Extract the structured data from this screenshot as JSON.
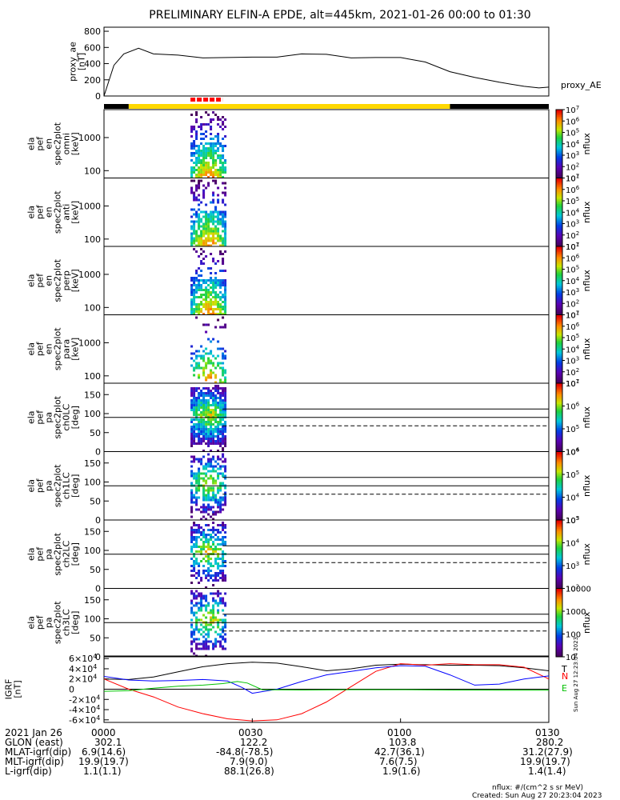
{
  "title": "PRELIMINARY ELFIN-A EPDE, alt=445km, 2021-01-26 00:00 to 01:30",
  "side_label": "Sun Aug 27 12:23:04 2023",
  "footer": {
    "rows": [
      {
        "label": "2021 Jan 26",
        "values": [
          "0000",
          "0030",
          "0100",
          "0130"
        ]
      },
      {
        "label": "GLON (east)",
        "values": [
          "302.1",
          "122.2",
          "103.8",
          "280.2"
        ]
      },
      {
        "label": "MLAT-igrf(dip)",
        "values": [
          "6.9(14.6)",
          "-84.8(-78.5)",
          "42.7(36.1)",
          "31.2(27.9)"
        ]
      },
      {
        "label": "MLT-igrf(dip)",
        "values": [
          "19.9(19.7)",
          "7.9(9.0)",
          "7.6(7.5)",
          "19.9(19.7)"
        ]
      },
      {
        "label": "L-igrf(dip)",
        "values": [
          "1.1(1.1)",
          "88.1(26.8)",
          "1.9(1.6)",
          "1.4(1.4)"
        ]
      }
    ],
    "units_note": "nflux: #/(cm^2 s sr MeV)",
    "created": "Created: Sun Aug 27 20:23:04 2023"
  },
  "chart_data": [
    {
      "type": "line",
      "panel": "proxy_ae",
      "ylabel": [
        "proxy_ae",
        "[nT]"
      ],
      "series_label": "proxy_AE",
      "yticks": [
        0,
        200,
        400,
        600,
        800
      ],
      "ylim": [
        0,
        850
      ],
      "x_minutes": [
        0,
        2,
        4,
        7,
        10,
        15,
        20,
        25,
        30,
        35,
        40,
        45,
        50,
        55,
        60,
        65,
        70,
        75,
        80,
        85,
        88,
        90
      ],
      "values": [
        0,
        380,
        520,
        590,
        520,
        505,
        470,
        475,
        480,
        480,
        520,
        515,
        470,
        475,
        475,
        420,
        300,
        230,
        170,
        120,
        100,
        110
      ],
      "color": "#000000"
    },
    {
      "type": "bar",
      "panel": "science_zone_bar",
      "segments": [
        {
          "start_min": 0,
          "end_min": 5,
          "color": "#000000"
        },
        {
          "start_min": 5,
          "end_min": 70,
          "color": "#ffd800"
        },
        {
          "start_min": 70,
          "end_min": 90,
          "color": "#000000"
        }
      ],
      "markers": [
        {
          "start_min": 17.5,
          "end_min": 24,
          "color": "#ff0000"
        }
      ]
    },
    {
      "type": "heatmap",
      "panel": "ela_pef_en_spec2plot_omni",
      "ylabel": [
        "ela",
        "pef",
        "en",
        "spec2plot",
        "omni",
        "[keV]"
      ],
      "yscale": "log",
      "ylim": [
        60,
        7000
      ],
      "yticks": [
        100,
        1000
      ],
      "xlim_min": [
        17.5,
        24.5
      ],
      "zlabel": "nflux",
      "zscale": "log",
      "zlim": [
        10,
        10000000
      ],
      "zticks": [
        "10^1",
        "10^2",
        "10^3",
        "10^4",
        "10^5",
        "10^6",
        "10^7"
      ]
    },
    {
      "type": "heatmap",
      "panel": "ela_pef_en_spec2plot_anti",
      "ylabel": [
        "ela",
        "pef",
        "en",
        "spec2plot",
        "anti",
        "[keV]"
      ],
      "yscale": "log",
      "ylim": [
        60,
        7000
      ],
      "yticks": [
        100,
        1000
      ],
      "zlabel": "nflux",
      "zscale": "log",
      "zlim": [
        10,
        10000000
      ],
      "zticks": [
        "10^1",
        "10^2",
        "10^3",
        "10^4",
        "10^5",
        "10^6",
        "10^7"
      ]
    },
    {
      "type": "heatmap",
      "panel": "ela_pef_en_spec2plot_perp",
      "ylabel": [
        "ela",
        "pef",
        "en",
        "spec2plot",
        "perp",
        "[keV]"
      ],
      "yscale": "log",
      "ylim": [
        60,
        7000
      ],
      "yticks": [
        100,
        1000
      ],
      "zlabel": "nflux",
      "zscale": "log",
      "zlim": [
        10,
        10000000
      ],
      "zticks": [
        "10^1",
        "10^2",
        "10^3",
        "10^4",
        "10^5",
        "10^6",
        "10^7"
      ]
    },
    {
      "type": "heatmap",
      "panel": "ela_pef_en_spec2plot_para",
      "ylabel": [
        "ela",
        "pef",
        "en",
        "spec2plot",
        "para",
        "[keV]"
      ],
      "yscale": "log",
      "ylim": [
        60,
        7000
      ],
      "yticks": [
        100,
        1000
      ],
      "zlabel": "nflux",
      "zscale": "log",
      "zlim": [
        10,
        10000000
      ],
      "zticks": [
        "10^1",
        "10^2",
        "10^3",
        "10^4",
        "10^5",
        "10^6",
        "10^7"
      ]
    },
    {
      "type": "heatmap",
      "panel": "ela_pef_pa_spec2plot_ch0LC",
      "ylabel": [
        "ela",
        "pef",
        "pa",
        "spec2plot",
        "ch0LC",
        "[deg]"
      ],
      "ylim": [
        0,
        180
      ],
      "yticks": [
        0,
        50,
        100,
        150
      ],
      "ref_lines_deg": [
        90,
        112,
        68
      ],
      "zlabel": "nflux",
      "zscale": "log",
      "zlim": [
        3000,
        10000000
      ],
      "zticks": [
        "10^4",
        "10^5",
        "10^6",
        "10^7"
      ]
    },
    {
      "type": "heatmap",
      "panel": "ela_pef_pa_spec2plot_ch1LC",
      "ylabel": [
        "ela",
        "pef",
        "pa",
        "spec2plot",
        "ch1LC",
        "[deg]"
      ],
      "ylim": [
        0,
        180
      ],
      "yticks": [
        0,
        50,
        100,
        150
      ],
      "ref_lines_deg": [
        90,
        112,
        68
      ],
      "zlabel": "nflux",
      "zscale": "log",
      "zlim": [
        1000,
        1000000
      ],
      "zticks": [
        "10^3",
        "10^4",
        "10^5",
        "10^6"
      ]
    },
    {
      "type": "heatmap",
      "panel": "ela_pef_pa_spec2plot_ch2LC",
      "ylabel": [
        "ela",
        "pef",
        "pa",
        "spec2plot",
        "ch2LC",
        "[deg]"
      ],
      "ylim": [
        0,
        180
      ],
      "yticks": [
        0,
        50,
        100,
        150
      ],
      "ref_lines_deg": [
        90,
        112,
        68
      ],
      "zlabel": "nflux",
      "zscale": "log",
      "zlim": [
        100,
        100000
      ],
      "zticks": [
        "10^2",
        "10^3",
        "10^4",
        "10^5"
      ]
    },
    {
      "type": "heatmap",
      "panel": "ela_pef_pa_spec2plot_ch3LC",
      "ylabel": [
        "ela",
        "pef",
        "pa",
        "spec2plot",
        "ch3LC",
        "[deg]"
      ],
      "ylim": [
        0,
        180
      ],
      "yticks": [
        0,
        50,
        100,
        150
      ],
      "ref_lines_deg": [
        90,
        112,
        68
      ],
      "zlabel": "nflux",
      "zscale": "log",
      "zlim": [
        10,
        10000
      ],
      "zticks": [
        "10",
        "100",
        "1000",
        "10000"
      ]
    },
    {
      "type": "line",
      "panel": "IGRF",
      "ylabel": [
        "IGRF",
        "[nT]"
      ],
      "ylim": [
        -65000,
        65000
      ],
      "yticks": [
        -60000,
        -40000,
        -20000,
        0,
        20000,
        40000,
        60000
      ],
      "ytick_labels": [
        "-6×10^4",
        "-4×10^4",
        "-2×10^4",
        "0",
        "2×10^4",
        "4×10^4",
        "6×10^4"
      ],
      "legend": [
        "T",
        "N",
        "E"
      ],
      "series": [
        {
          "name": "T",
          "color": "#000000",
          "x_minutes": [
            0,
            5,
            10,
            15,
            20,
            25,
            30,
            35,
            40,
            45,
            50,
            55,
            60,
            65,
            70,
            75,
            80,
            85,
            90
          ],
          "values": [
            20000,
            19000,
            24000,
            34000,
            44000,
            50000,
            53000,
            51000,
            44000,
            36000,
            40000,
            47000,
            49000,
            48000,
            47000,
            47000,
            46000,
            42000,
            36000
          ]
        },
        {
          "name": "N",
          "color": "#ff0000",
          "x_minutes": [
            0,
            5,
            10,
            15,
            20,
            25,
            30,
            35,
            40,
            45,
            50,
            55,
            60,
            65,
            70,
            75,
            80,
            85,
            90
          ],
          "values": [
            20000,
            0,
            -15000,
            -35000,
            -48000,
            -58000,
            -62000,
            -60000,
            -48000,
            -25000,
            5000,
            35000,
            50000,
            47000,
            50000,
            48000,
            48000,
            43000,
            20000
          ]
        },
        {
          "name": "E",
          "color": "#0000ff",
          "x_minutes": [
            0,
            5,
            10,
            15,
            20,
            25,
            28,
            30,
            35,
            40,
            45,
            50,
            55,
            60,
            65,
            70,
            75,
            80,
            85,
            90
          ],
          "values": [
            25000,
            18000,
            16000,
            17000,
            19000,
            16000,
            3000,
            -8000,
            0,
            15000,
            28000,
            35000,
            42000,
            46000,
            45000,
            28000,
            8000,
            10000,
            20000,
            26000
          ]
        },
        {
          "name": "",
          "color": "#00c000",
          "x_minutes": [
            0,
            5,
            10,
            15,
            20,
            24,
            27,
            29,
            32,
            40,
            50,
            60,
            70,
            80,
            90
          ],
          "values": [
            -4000,
            -3000,
            2000,
            6000,
            8000,
            11000,
            15000,
            12000,
            -1000,
            -1500,
            -1000,
            -1000,
            -1500,
            -2000,
            -2000
          ]
        }
      ]
    }
  ]
}
